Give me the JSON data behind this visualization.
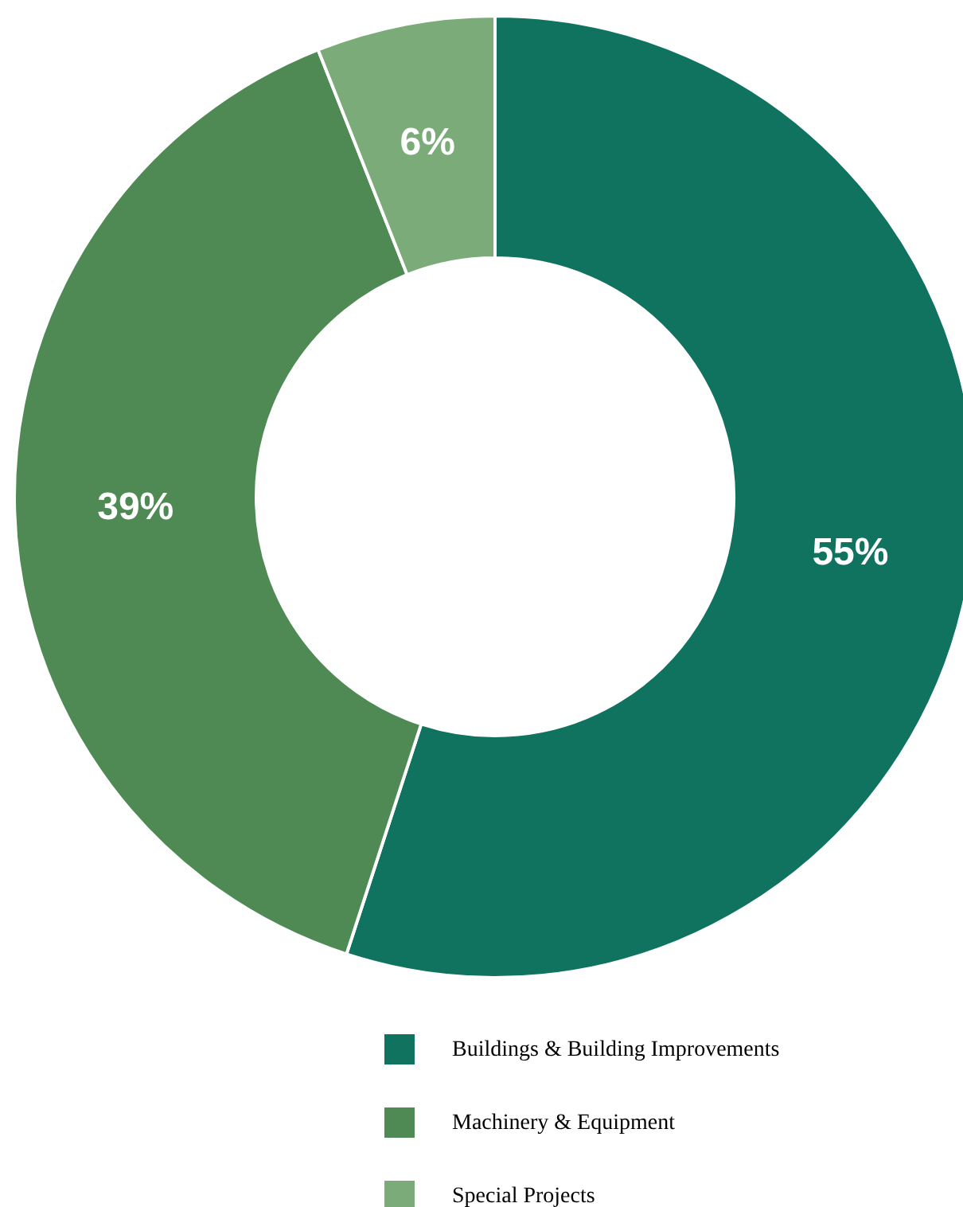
{
  "chart_data": {
    "type": "donut",
    "categories": [
      "Buildings & Building Improvements",
      "Machinery & Equipment",
      "Special Projects"
    ],
    "values": [
      55,
      39,
      6
    ],
    "colors": [
      "#10735f",
      "#4f8a55",
      "#7aab78"
    ],
    "value_labels": [
      "55%",
      "39%",
      "6%"
    ],
    "legend": "bottom"
  }
}
